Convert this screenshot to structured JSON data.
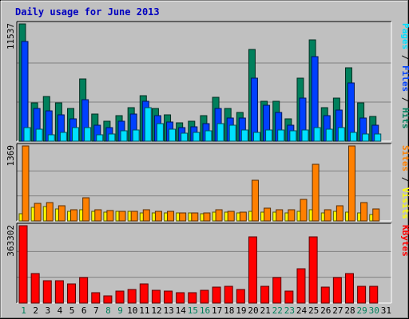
{
  "chart_data": {
    "type": "bar",
    "title": "Daily usage for June 2013",
    "categories": [
      "1",
      "2",
      "3",
      "4",
      "5",
      "6",
      "7",
      "8",
      "9",
      "10",
      "11",
      "12",
      "13",
      "14",
      "15",
      "16",
      "17",
      "18",
      "19",
      "20",
      "21",
      "22",
      "23",
      "24",
      "25",
      "26",
      "27",
      "28",
      "29",
      "30",
      "31"
    ],
    "weekend_days": [
      "1",
      "8",
      "9",
      "15",
      "16",
      "22",
      "23",
      "29",
      "30"
    ],
    "panels": [
      {
        "id": "hits-files-pages",
        "max_label": "11537",
        "ymax": 11537,
        "legend": [
          {
            "text": "Pages",
            "color": "#00e0ff"
          },
          {
            "text": " / ",
            "color": "#000000"
          },
          {
            "text": "Files",
            "color": "#0040ff"
          },
          {
            "text": " / ",
            "color": "#000000"
          },
          {
            "text": "Hits",
            "color": "#00805c"
          }
        ],
        "series": [
          {
            "name": "Hits",
            "color": "#00805c",
            "values": [
              11537,
              3800,
              4400,
              3800,
              3200,
              6100,
              2700,
              2000,
              2500,
              3300,
              4500,
              3200,
              2600,
              1800,
              2000,
              2500,
              4300,
              3200,
              2800,
              9000,
              3900,
              3900,
              2200,
              6200,
              10000,
              3300,
              4200,
              7200,
              3800,
              2400,
              0
            ]
          },
          {
            "name": "Files",
            "color": "#0040ff",
            "values": [
              9800,
              3200,
              3000,
              2600,
              2200,
              4100,
              1600,
              1300,
              2000,
              2700,
              3900,
              2500,
              1900,
              1300,
              1400,
              1700,
              3200,
              2300,
              2300,
              6200,
              3500,
              2800,
              1600,
              4200,
              8300,
              2500,
              3100,
              5700,
              2300,
              1600,
              0
            ]
          },
          {
            "name": "Pages",
            "color": "#00e0ff",
            "values": [
              1300,
              1200,
              600,
              900,
              1300,
              1300,
              600,
              700,
              1000,
              1100,
              3300,
              1700,
              1200,
              800,
              900,
              1000,
              1700,
              1600,
              1100,
              900,
              1100,
              1100,
              1000,
              1100,
              1300,
              1200,
              1300,
              900,
              700,
              700,
              0
            ]
          }
        ]
      },
      {
        "id": "visits-sites",
        "max_label": "1369",
        "ymax": 1369,
        "legend": [
          {
            "text": "Sites",
            "color": "#ff8000"
          },
          {
            "text": " / ",
            "color": "#000000"
          },
          {
            "text": "Visits",
            "color": "#ffff00"
          }
        ],
        "series": [
          {
            "name": "Visits",
            "color": "#ffff00",
            "values": [
              130,
              250,
              260,
              220,
              170,
              200,
              170,
              160,
              170,
              170,
              140,
              140,
              140,
              140,
              140,
              130,
              160,
              160,
              150,
              170,
              160,
              160,
              150,
              180,
              200,
              150,
              170,
              160,
              150,
              120,
              0
            ]
          },
          {
            "name": "Sites",
            "color": "#ff8000",
            "values": [
              1369,
              320,
              340,
              280,
              200,
              420,
              200,
              190,
              180,
              170,
              200,
              170,
              180,
              140,
              140,
              150,
              200,
              170,
              160,
              740,
              240,
              200,
              210,
              400,
              1030,
              210,
              270,
              1369,
              330,
              220,
              0
            ]
          }
        ]
      },
      {
        "id": "kbytes",
        "max_label": "363302",
        "ymax": 363302,
        "legend": [
          {
            "text": "KBytes",
            "color": "#ff0000"
          }
        ],
        "series": [
          {
            "name": "KBytes",
            "color": "#ff0000",
            "values": [
              363302,
              140000,
              105000,
              105000,
              90000,
              120000,
              50000,
              35000,
              55000,
              65000,
              90000,
              60000,
              55000,
              50000,
              50000,
              60000,
              75000,
              80000,
              65000,
              310000,
              80000,
              120000,
              55000,
              160000,
              310000,
              75000,
              120000,
              140000,
              80000,
              80000,
              0
            ]
          }
        ]
      }
    ]
  }
}
